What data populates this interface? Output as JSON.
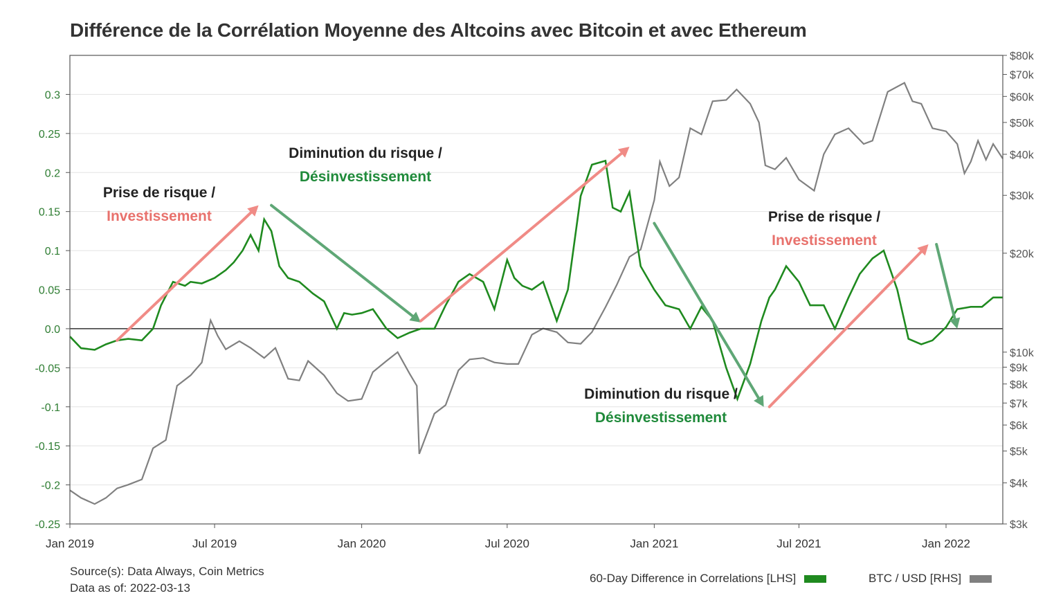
{
  "colors": {
    "correlation": "#1f8a1f",
    "btc": "#808080",
    "risk_on_arrow": "#f08b86",
    "risk_off_arrow": "#5fa776",
    "risk_on_text": "#e8716c",
    "risk_off_text": "#1f8a3a",
    "axis_left_ticks": "#2e7d32"
  },
  "chart_data": {
    "type": "line",
    "title": "Différence de la Corrélation Moyenne des Altcoins avec Bitcoin et avec Ethereum",
    "x_ticks": [
      "Jan 2019",
      "Jul 2019",
      "Jan 2020",
      "Jul 2020",
      "Jan 2021",
      "Jul 2021",
      "Jan 2022"
    ],
    "x_range": [
      "2019-01-01",
      "2022-03-13"
    ],
    "left_axis": {
      "ylim": [
        -0.25,
        0.35
      ],
      "ticks": [
        0.3,
        0.25,
        0.2,
        0.15,
        0.1,
        0.05,
        0.0,
        -0.05,
        -0.1,
        -0.15,
        -0.2,
        -0.25
      ],
      "tick_labels": [
        "0.3",
        "0.25",
        "0.2",
        "0.15",
        "0.1",
        "0.05",
        "0.0",
        "-0.05",
        "-0.1",
        "-0.15",
        "-0.2",
        "-0.25"
      ]
    },
    "right_axis": {
      "scale": "log",
      "ylim": [
        3000,
        80000
      ],
      "ticks": [
        80000,
        70000,
        60000,
        50000,
        40000,
        30000,
        20000,
        10000,
        9000,
        8000,
        7000,
        6000,
        5000,
        4000,
        3000
      ],
      "tick_labels": [
        "$80k",
        "$70k",
        "$60k",
        "$50k",
        "$40k",
        "$30k",
        "$20k",
        "$10k",
        "$9k",
        "$8k",
        "$7k",
        "$6k",
        "$5k",
        "$4k",
        "$3k"
      ]
    },
    "series": [
      {
        "name": "60-Day Difference in Correlations [LHS]",
        "axis": "left",
        "x": [
          "2019-01-01",
          "2019-01-15",
          "2019-02-01",
          "2019-02-15",
          "2019-03-01",
          "2019-03-15",
          "2019-04-01",
          "2019-04-15",
          "2019-04-25",
          "2019-05-10",
          "2019-05-25",
          "2019-06-01",
          "2019-06-15",
          "2019-07-01",
          "2019-07-15",
          "2019-07-25",
          "2019-08-05",
          "2019-08-15",
          "2019-08-25",
          "2019-09-01",
          "2019-09-10",
          "2019-09-20",
          "2019-10-01",
          "2019-10-15",
          "2019-11-01",
          "2019-11-15",
          "2019-12-01",
          "2019-12-10",
          "2019-12-20",
          "2020-01-01",
          "2020-01-15",
          "2020-02-01",
          "2020-02-15",
          "2020-03-01",
          "2020-03-15",
          "2020-04-01",
          "2020-04-15",
          "2020-05-01",
          "2020-05-15",
          "2020-06-01",
          "2020-06-15",
          "2020-07-01",
          "2020-07-10",
          "2020-07-20",
          "2020-08-01",
          "2020-08-15",
          "2020-09-01",
          "2020-09-15",
          "2020-10-01",
          "2020-10-15",
          "2020-11-01",
          "2020-11-10",
          "2020-11-20",
          "2020-12-01",
          "2020-12-15",
          "2021-01-01",
          "2021-01-15",
          "2021-02-01",
          "2021-02-15",
          "2021-03-01",
          "2021-03-15",
          "2021-04-01",
          "2021-04-15",
          "2021-05-01",
          "2021-05-15",
          "2021-05-25",
          "2021-06-01",
          "2021-06-15",
          "2021-07-01",
          "2021-07-15",
          "2021-08-01",
          "2021-08-15",
          "2021-09-01",
          "2021-09-15",
          "2021-10-01",
          "2021-10-15",
          "2021-11-01",
          "2021-11-15",
          "2021-12-01",
          "2021-12-15",
          "2022-01-01",
          "2022-01-15",
          "2022-02-01",
          "2022-02-15",
          "2022-03-01",
          "2022-03-13"
        ],
        "values": [
          -0.01,
          -0.025,
          -0.027,
          -0.02,
          -0.015,
          -0.013,
          -0.015,
          0.0,
          0.03,
          0.06,
          0.055,
          0.06,
          0.058,
          0.065,
          0.075,
          0.085,
          0.1,
          0.12,
          0.1,
          0.14,
          0.125,
          0.08,
          0.065,
          0.06,
          0.045,
          0.035,
          0.0,
          0.02,
          0.018,
          0.02,
          0.025,
          0.0,
          -0.012,
          -0.005,
          0.0,
          0.0,
          0.03,
          0.06,
          0.07,
          0.06,
          0.025,
          0.088,
          0.065,
          0.055,
          0.05,
          0.06,
          0.01,
          0.05,
          0.17,
          0.21,
          0.215,
          0.155,
          0.15,
          0.175,
          0.08,
          0.05,
          0.03,
          0.025,
          0.0,
          0.028,
          0.01,
          -0.05,
          -0.09,
          -0.045,
          0.01,
          0.04,
          0.05,
          0.08,
          0.06,
          0.03,
          0.03,
          0.0,
          0.04,
          0.07,
          0.09,
          0.1,
          0.05,
          -0.013,
          -0.02,
          -0.015,
          0.002,
          0.025,
          0.028,
          0.028,
          0.04,
          0.04
        ]
      },
      {
        "name": "BTC / USD [RHS]",
        "axis": "right",
        "x": [
          "2019-01-01",
          "2019-01-15",
          "2019-02-01",
          "2019-02-15",
          "2019-03-01",
          "2019-03-15",
          "2019-04-01",
          "2019-04-15",
          "2019-05-01",
          "2019-05-15",
          "2019-06-01",
          "2019-06-15",
          "2019-06-26",
          "2019-07-05",
          "2019-07-15",
          "2019-08-01",
          "2019-08-15",
          "2019-09-01",
          "2019-09-15",
          "2019-10-01",
          "2019-10-15",
          "2019-10-26",
          "2019-11-15",
          "2019-12-01",
          "2019-12-15",
          "2020-01-01",
          "2020-01-15",
          "2020-02-01",
          "2020-02-15",
          "2020-03-01",
          "2020-03-10",
          "2020-03-13",
          "2020-04-01",
          "2020-04-15",
          "2020-05-01",
          "2020-05-15",
          "2020-06-01",
          "2020-06-15",
          "2020-07-01",
          "2020-07-15",
          "2020-08-01",
          "2020-08-15",
          "2020-09-01",
          "2020-09-15",
          "2020-10-01",
          "2020-10-15",
          "2020-11-01",
          "2020-11-15",
          "2020-12-01",
          "2020-12-15",
          "2021-01-01",
          "2021-01-08",
          "2021-01-20",
          "2021-02-01",
          "2021-02-15",
          "2021-03-01",
          "2021-03-15",
          "2021-04-01",
          "2021-04-14",
          "2021-05-01",
          "2021-05-12",
          "2021-05-20",
          "2021-06-01",
          "2021-06-15",
          "2021-07-01",
          "2021-07-20",
          "2021-08-01",
          "2021-08-15",
          "2021-09-01",
          "2021-09-20",
          "2021-10-01",
          "2021-10-20",
          "2021-11-10",
          "2021-11-20",
          "2021-12-01",
          "2021-12-15",
          "2022-01-01",
          "2022-01-15",
          "2022-01-24",
          "2022-02-01",
          "2022-02-10",
          "2022-02-20",
          "2022-03-01",
          "2022-03-13"
        ],
        "values": [
          3800,
          3600,
          3450,
          3600,
          3850,
          3950,
          4100,
          5100,
          5400,
          7900,
          8500,
          9300,
          12500,
          11200,
          10200,
          10800,
          10300,
          9600,
          10300,
          8300,
          8200,
          9400,
          8500,
          7500,
          7100,
          7200,
          8700,
          9400,
          10000,
          8600,
          7900,
          4900,
          6500,
          6900,
          8800,
          9500,
          9600,
          9300,
          9200,
          9200,
          11300,
          11800,
          11500,
          10700,
          10600,
          11500,
          13700,
          16000,
          19500,
          20500,
          29000,
          38000,
          32000,
          34000,
          48000,
          46000,
          58000,
          58500,
          63000,
          57000,
          50000,
          37000,
          36000,
          39000,
          33500,
          31000,
          40000,
          46000,
          48000,
          43000,
          44000,
          62000,
          66000,
          58000,
          57000,
          48000,
          47000,
          43000,
          35000,
          38000,
          44000,
          38500,
          43000,
          38800
        ]
      }
    ],
    "annotations": [
      {
        "line1": "Prise de risque /",
        "line2": "Investissement",
        "kind": "risk-on"
      },
      {
        "line1": "Diminution du risque /",
        "line2": "Désinvestissement",
        "kind": "risk-off"
      },
      {
        "line1": "Prise de risque /",
        "line2": "Investissement",
        "kind": "risk-on"
      },
      {
        "line1": "Diminution du risque /",
        "line2": "Désinvestissement",
        "kind": "risk-off"
      }
    ],
    "arrows": [
      {
        "kind": "risk-on",
        "from": [
          "2019-03-01",
          -0.015
        ],
        "to": [
          "2019-08-25",
          0.158
        ]
      },
      {
        "kind": "risk-off",
        "from": [
          "2019-09-10",
          0.158
        ],
        "to": [
          "2020-03-15",
          0.008
        ]
      },
      {
        "kind": "risk-on",
        "from": [
          "2020-03-15",
          0.01
        ],
        "to": [
          "2020-12-01",
          0.233
        ]
      },
      {
        "kind": "risk-off",
        "from": [
          "2021-01-01",
          0.135
        ],
        "to": [
          "2021-05-18",
          -0.1
        ]
      },
      {
        "kind": "risk-on",
        "from": [
          "2021-05-25",
          -0.1
        ],
        "to": [
          "2021-12-10",
          0.108
        ]
      },
      {
        "kind": "risk-off",
        "from": [
          "2021-12-20",
          0.108
        ],
        "to": [
          "2022-01-15",
          0.0
        ]
      }
    ]
  },
  "source": {
    "line1": "Source(s): Data Always, Coin Metrics",
    "line2": "Data as of: 2022-03-13"
  },
  "legend": {
    "correlation": "60-Day Difference in Correlations [LHS]",
    "btc": "BTC / USD [RHS]"
  }
}
